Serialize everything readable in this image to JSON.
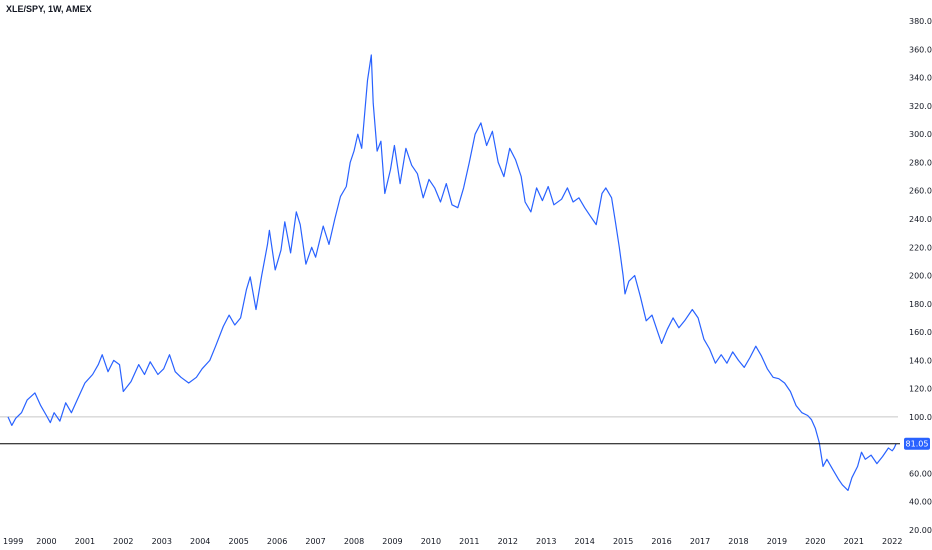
{
  "header": {
    "title": "XLE/SPY, 1W, AMEX"
  },
  "chart_data": {
    "type": "line",
    "title": "XLE/SPY, 1W, AMEX",
    "xlabel": "",
    "ylabel": "",
    "xlim": [
      1999.0,
      2022.15
    ],
    "ylim": [
      20,
      385
    ],
    "grid": false,
    "x_ticks": [
      "1999",
      "2000",
      "2001",
      "2002",
      "2003",
      "2004",
      "2005",
      "2006",
      "2007",
      "2008",
      "2009",
      "2010",
      "2011",
      "2012",
      "2013",
      "2014",
      "2015",
      "2016",
      "2017",
      "2018",
      "2019",
      "2020",
      "2021",
      "2022"
    ],
    "y_ticks": [
      "20.00",
      "40.00",
      "60.00",
      "80.00",
      "100.00",
      "120.00",
      "140.00",
      "160.00",
      "180.00",
      "200.00",
      "220.00",
      "240.00",
      "260.00",
      "280.00",
      "300.00",
      "320.00",
      "340.00",
      "360.00",
      "380.00"
    ],
    "reference_line": {
      "value": 100,
      "color": "#c8c8c8"
    },
    "last_price": {
      "value": 81.05,
      "label": "81.05",
      "line_color": "#000000",
      "badge_color": "#2962ff"
    },
    "series": [
      {
        "color": "#2962ff",
        "points": [
          [
            1999.0,
            100
          ],
          [
            1999.1,
            94
          ],
          [
            1999.2,
            99
          ],
          [
            1999.35,
            103
          ],
          [
            1999.5,
            112
          ],
          [
            1999.7,
            117
          ],
          [
            1999.85,
            108
          ],
          [
            2000.0,
            101
          ],
          [
            2000.1,
            96
          ],
          [
            2000.2,
            103
          ],
          [
            2000.35,
            97
          ],
          [
            2000.5,
            110
          ],
          [
            2000.65,
            103
          ],
          [
            2000.8,
            112
          ],
          [
            2001.0,
            124
          ],
          [
            2001.2,
            130
          ],
          [
            2001.35,
            137
          ],
          [
            2001.45,
            144
          ],
          [
            2001.6,
            132
          ],
          [
            2001.75,
            140
          ],
          [
            2001.9,
            137
          ],
          [
            2002.0,
            118
          ],
          [
            2002.2,
            125
          ],
          [
            2002.4,
            137
          ],
          [
            2002.55,
            130
          ],
          [
            2002.7,
            139
          ],
          [
            2002.9,
            130
          ],
          [
            2003.05,
            134
          ],
          [
            2003.2,
            144
          ],
          [
            2003.35,
            132
          ],
          [
            2003.5,
            128
          ],
          [
            2003.7,
            124
          ],
          [
            2003.9,
            128
          ],
          [
            2004.05,
            134
          ],
          [
            2004.25,
            140
          ],
          [
            2004.4,
            150
          ],
          [
            2004.6,
            164
          ],
          [
            2004.75,
            172
          ],
          [
            2004.9,
            165
          ],
          [
            2005.05,
            170
          ],
          [
            2005.2,
            190
          ],
          [
            2005.3,
            199
          ],
          [
            2005.45,
            176
          ],
          [
            2005.6,
            200
          ],
          [
            2005.75,
            222
          ],
          [
            2005.8,
            232
          ],
          [
            2005.95,
            204
          ],
          [
            2006.1,
            218
          ],
          [
            2006.2,
            238
          ],
          [
            2006.35,
            216
          ],
          [
            2006.5,
            245
          ],
          [
            2006.6,
            236
          ],
          [
            2006.75,
            208
          ],
          [
            2006.9,
            220
          ],
          [
            2007.0,
            213
          ],
          [
            2007.2,
            235
          ],
          [
            2007.35,
            222
          ],
          [
            2007.5,
            240
          ],
          [
            2007.65,
            256
          ],
          [
            2007.8,
            263
          ],
          [
            2007.9,
            280
          ],
          [
            2008.0,
            288
          ],
          [
            2008.1,
            300
          ],
          [
            2008.2,
            290
          ],
          [
            2008.35,
            338
          ],
          [
            2008.45,
            356
          ],
          [
            2008.5,
            322
          ],
          [
            2008.6,
            288
          ],
          [
            2008.7,
            295
          ],
          [
            2008.8,
            258
          ],
          [
            2008.95,
            275
          ],
          [
            2009.05,
            292
          ],
          [
            2009.2,
            265
          ],
          [
            2009.35,
            290
          ],
          [
            2009.5,
            278
          ],
          [
            2009.65,
            272
          ],
          [
            2009.8,
            255
          ],
          [
            2009.95,
            268
          ],
          [
            2010.1,
            262
          ],
          [
            2010.25,
            252
          ],
          [
            2010.4,
            265
          ],
          [
            2010.55,
            250
          ],
          [
            2010.7,
            248
          ],
          [
            2010.85,
            262
          ],
          [
            2011.0,
            280
          ],
          [
            2011.15,
            300
          ],
          [
            2011.3,
            308
          ],
          [
            2011.45,
            292
          ],
          [
            2011.6,
            302
          ],
          [
            2011.75,
            280
          ],
          [
            2011.9,
            270
          ],
          [
            2012.05,
            290
          ],
          [
            2012.2,
            282
          ],
          [
            2012.35,
            270
          ],
          [
            2012.45,
            252
          ],
          [
            2012.6,
            245
          ],
          [
            2012.75,
            262
          ],
          [
            2012.9,
            253
          ],
          [
            2013.05,
            263
          ],
          [
            2013.2,
            250
          ],
          [
            2013.4,
            254
          ],
          [
            2013.55,
            262
          ],
          [
            2013.7,
            252
          ],
          [
            2013.85,
            255
          ],
          [
            2014.0,
            248
          ],
          [
            2014.15,
            242
          ],
          [
            2014.3,
            236
          ],
          [
            2014.45,
            258
          ],
          [
            2014.55,
            262
          ],
          [
            2014.7,
            255
          ],
          [
            2014.8,
            238
          ],
          [
            2014.9,
            220
          ],
          [
            2015.0,
            200
          ],
          [
            2015.05,
            187
          ],
          [
            2015.15,
            196
          ],
          [
            2015.3,
            200
          ],
          [
            2015.45,
            185
          ],
          [
            2015.6,
            168
          ],
          [
            2015.75,
            172
          ],
          [
            2015.9,
            160
          ],
          [
            2016.0,
            152
          ],
          [
            2016.15,
            162
          ],
          [
            2016.3,
            170
          ],
          [
            2016.45,
            163
          ],
          [
            2016.6,
            168
          ],
          [
            2016.8,
            176
          ],
          [
            2016.95,
            170
          ],
          [
            2017.1,
            155
          ],
          [
            2017.25,
            148
          ],
          [
            2017.4,
            138
          ],
          [
            2017.55,
            144
          ],
          [
            2017.7,
            138
          ],
          [
            2017.85,
            146
          ],
          [
            2018.0,
            140
          ],
          [
            2018.15,
            135
          ],
          [
            2018.3,
            142
          ],
          [
            2018.45,
            150
          ],
          [
            2018.6,
            143
          ],
          [
            2018.75,
            134
          ],
          [
            2018.9,
            128
          ],
          [
            2019.05,
            127
          ],
          [
            2019.2,
            124
          ],
          [
            2019.35,
            118
          ],
          [
            2019.5,
            108
          ],
          [
            2019.65,
            103
          ],
          [
            2019.8,
            101
          ],
          [
            2019.9,
            98
          ],
          [
            2020.0,
            92
          ],
          [
            2020.1,
            82
          ],
          [
            2020.2,
            65
          ],
          [
            2020.3,
            70
          ],
          [
            2020.45,
            63
          ],
          [
            2020.6,
            56
          ],
          [
            2020.7,
            52
          ],
          [
            2020.85,
            48
          ],
          [
            2020.95,
            57
          ],
          [
            2021.1,
            65
          ],
          [
            2021.2,
            75
          ],
          [
            2021.3,
            70
          ],
          [
            2021.45,
            73
          ],
          [
            2021.6,
            67
          ],
          [
            2021.75,
            72
          ],
          [
            2021.9,
            78
          ],
          [
            2022.0,
            76
          ],
          [
            2022.05,
            78
          ],
          [
            2022.1,
            81.05
          ]
        ]
      }
    ]
  }
}
